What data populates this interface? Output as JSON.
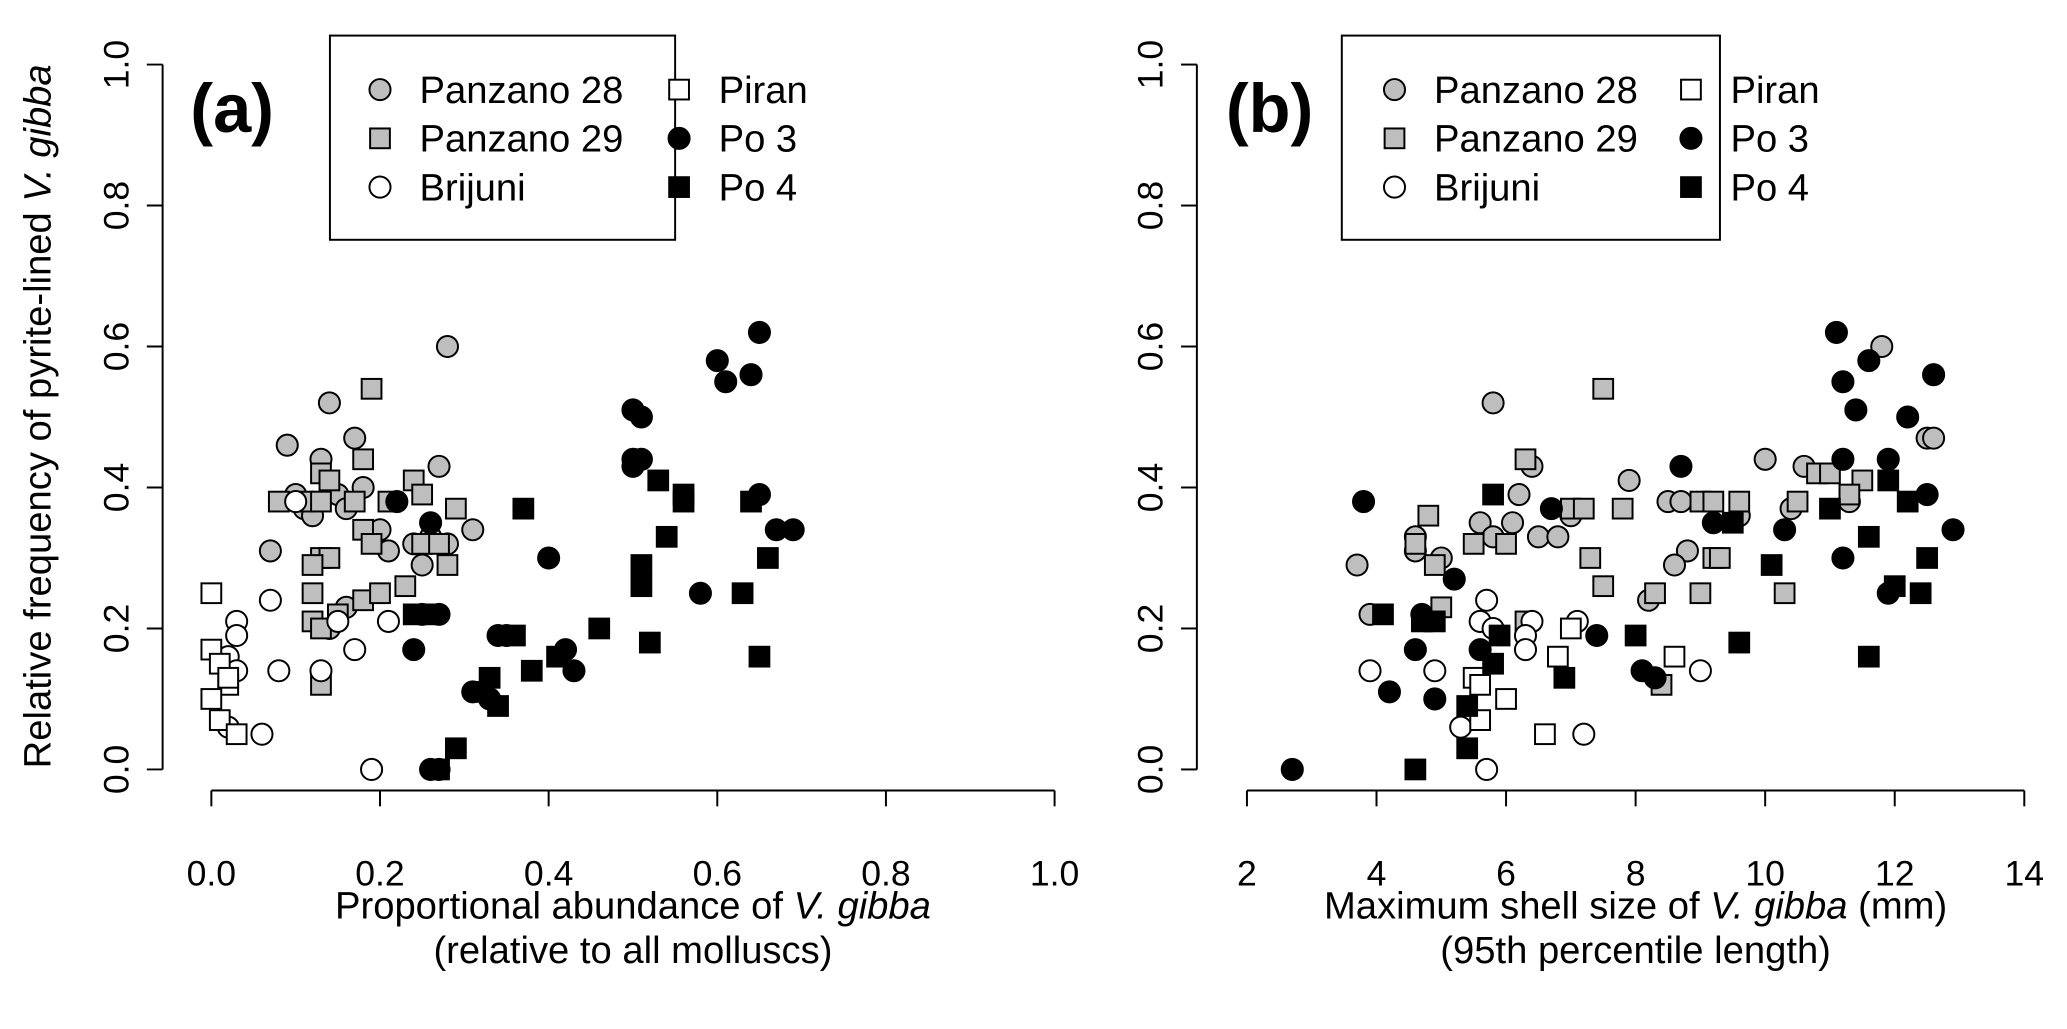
{
  "chart_data": [
    {
      "type": "scatter",
      "panel_label": "(a)",
      "xlabel": [
        "Proportional abundance of ",
        "V. gibba",
        "(relative to all molluscs)"
      ],
      "ylabel": [
        "Relative frequency of pyrite-lined ",
        "V. gibba"
      ],
      "xlim": [
        0,
        1
      ],
      "ylim": [
        0,
        1
      ],
      "xticks": [
        {
          "value": 0,
          "label": "0.0"
        },
        {
          "value": 0.2,
          "label": "0.2"
        },
        {
          "value": 0.4,
          "label": "0.4"
        },
        {
          "value": 0.6,
          "label": "0.6"
        },
        {
          "value": 0.8,
          "label": "0.8"
        },
        {
          "value": 1,
          "label": "1.0"
        }
      ],
      "yticks": [
        {
          "value": 0,
          "label": "0.0"
        },
        {
          "value": 0.2,
          "label": "0.2"
        },
        {
          "value": 0.4,
          "label": "0.4"
        },
        {
          "value": 0.6,
          "label": "0.6"
        },
        {
          "value": 0.8,
          "label": "0.8"
        },
        {
          "value": 1,
          "label": "1.0"
        }
      ],
      "legend": "top",
      "series": [
        {
          "name": "Panzano 28",
          "marker": "circle",
          "color": "#bebebe",
          "x": [
            0.09,
            0.14,
            0.28,
            0.17,
            0.13,
            0.1,
            0.11,
            0.15,
            0.16,
            0.18,
            0.27,
            0.07,
            0.12,
            0.2,
            0.24,
            0.26,
            0.31,
            0.21,
            0.25,
            0.16,
            0.14,
            0.28
          ],
          "y": [
            0.46,
            0.52,
            0.6,
            0.47,
            0.44,
            0.39,
            0.37,
            0.39,
            0.37,
            0.4,
            0.43,
            0.31,
            0.36,
            0.34,
            0.32,
            0.33,
            0.34,
            0.31,
            0.29,
            0.23,
            0.2,
            0.32
          ]
        },
        {
          "name": "Panzano 29",
          "marker": "square",
          "color": "#bebebe",
          "x": [
            0.19,
            0.18,
            0.13,
            0.14,
            0.08,
            0.11,
            0.13,
            0.17,
            0.21,
            0.24,
            0.25,
            0.29,
            0.18,
            0.19,
            0.25,
            0.27,
            0.28,
            0.13,
            0.14,
            0.12,
            0.15,
            0.18,
            0.12,
            0.13,
            0.2,
            0.23,
            0.13,
            0.12
          ],
          "y": [
            0.54,
            0.44,
            0.42,
            0.41,
            0.38,
            0.38,
            0.38,
            0.38,
            0.38,
            0.41,
            0.39,
            0.37,
            0.34,
            0.32,
            0.32,
            0.32,
            0.29,
            0.3,
            0.3,
            0.25,
            0.22,
            0.24,
            0.21,
            0.2,
            0.25,
            0.26,
            0.12,
            0.29
          ]
        },
        {
          "name": "Brijuni",
          "marker": "circle",
          "color": "#ffffff",
          "x": [
            0.03,
            0.03,
            0.02,
            0.03,
            0.07,
            0.08,
            0.13,
            0.15,
            0.17,
            0.21,
            0.02,
            0.06,
            0.19,
            0.1,
            0.25
          ],
          "y": [
            0.21,
            0.19,
            0.16,
            0.14,
            0.24,
            0.14,
            0.14,
            0.21,
            0.17,
            0.21,
            0.06,
            0.05,
            0.0,
            0.38,
            0.22
          ]
        },
        {
          "name": "Piran",
          "marker": "square",
          "color": "#ffffff",
          "x": [
            0.0,
            0.0,
            0.01,
            0.02,
            0.0,
            0.01,
            0.03,
            0.02
          ],
          "y": [
            0.25,
            0.17,
            0.15,
            0.12,
            0.1,
            0.07,
            0.05,
            0.13
          ]
        },
        {
          "name": "Po 3",
          "marker": "circle",
          "color": "#000000",
          "x": [
            0.65,
            0.6,
            0.61,
            0.64,
            0.5,
            0.51,
            0.5,
            0.51,
            0.5,
            0.65,
            0.67,
            0.69,
            0.4,
            0.58,
            0.22,
            0.26,
            0.27,
            0.24,
            0.34,
            0.35,
            0.42,
            0.43,
            0.31,
            0.33,
            0.26,
            0.27
          ],
          "y": [
            0.62,
            0.58,
            0.55,
            0.56,
            0.51,
            0.5,
            0.44,
            0.44,
            0.43,
            0.39,
            0.34,
            0.34,
            0.3,
            0.25,
            0.38,
            0.35,
            0.22,
            0.17,
            0.19,
            0.19,
            0.17,
            0.14,
            0.11,
            0.1,
            0.0,
            0.0
          ]
        },
        {
          "name": "Po 4",
          "marker": "square",
          "color": "#000000",
          "x": [
            0.53,
            0.56,
            0.56,
            0.64,
            0.37,
            0.54,
            0.66,
            0.51,
            0.51,
            0.63,
            0.46,
            0.36,
            0.41,
            0.52,
            0.65,
            0.38,
            0.33,
            0.32,
            0.34,
            0.29,
            0.27,
            0.24,
            0.26
          ],
          "y": [
            0.41,
            0.39,
            0.38,
            0.38,
            0.37,
            0.33,
            0.3,
            0.29,
            0.26,
            0.25,
            0.2,
            0.19,
            0.16,
            0.18,
            0.16,
            0.14,
            0.13,
            0.11,
            0.09,
            0.03,
            0.0,
            0.22,
            0.22
          ]
        }
      ]
    },
    {
      "type": "scatter",
      "panel_label": "(b)",
      "xlabel": [
        "Maximum shell size of ",
        "V. gibba",
        " (mm)",
        "(95th percentile length)"
      ],
      "xlim": [
        2,
        14
      ],
      "ylim": [
        0,
        1
      ],
      "xticks": [
        2,
        4,
        6,
        8,
        10,
        12,
        14
      ],
      "yticks": [
        {
          "value": 0,
          "label": "0.0"
        },
        {
          "value": 0.2,
          "label": "0.2"
        },
        {
          "value": 0.4,
          "label": "0.4"
        },
        {
          "value": 0.6,
          "label": "0.6"
        },
        {
          "value": 0.8,
          "label": "0.8"
        },
        {
          "value": 1,
          "label": "1.0"
        }
      ],
      "legend": "top",
      "series": [
        {
          "name": "Panzano 28",
          "marker": "circle",
          "color": "#bebebe",
          "x": [
            5.8,
            11.8,
            12.5,
            12.6,
            10.0,
            6.4,
            6.2,
            7.9,
            8.5,
            8.7,
            10.6,
            10.4,
            11.3,
            3.7,
            3.9,
            4.6,
            4.6,
            5.6,
            5.8,
            6.1,
            6.5,
            7.0,
            6.8,
            8.8,
            8.6,
            9.6,
            8.2,
            5.0
          ],
          "y": [
            0.52,
            0.6,
            0.47,
            0.47,
            0.44,
            0.43,
            0.39,
            0.41,
            0.38,
            0.38,
            0.43,
            0.37,
            0.38,
            0.29,
            0.22,
            0.33,
            0.31,
            0.35,
            0.33,
            0.35,
            0.33,
            0.36,
            0.33,
            0.31,
            0.29,
            0.36,
            0.24,
            0.3
          ]
        },
        {
          "name": "Panzano 29",
          "marker": "square",
          "color": "#bebebe",
          "x": [
            7.5,
            6.3,
            6.0,
            5.5,
            4.9,
            4.8,
            4.6,
            7.0,
            7.2,
            7.8,
            9.0,
            9.2,
            9.6,
            10.5,
            10.8,
            11.0,
            11.5,
            11.3,
            9.2,
            9.3,
            7.3,
            7.5,
            9.0,
            10.3,
            8.3,
            6.3,
            5.0,
            8.4
          ],
          "y": [
            0.54,
            0.44,
            0.32,
            0.32,
            0.29,
            0.36,
            0.32,
            0.37,
            0.37,
            0.37,
            0.38,
            0.38,
            0.38,
            0.38,
            0.42,
            0.42,
            0.41,
            0.39,
            0.3,
            0.3,
            0.3,
            0.26,
            0.25,
            0.25,
            0.25,
            0.21,
            0.23,
            0.12
          ]
        },
        {
          "name": "Brijuni",
          "marker": "circle",
          "color": "#ffffff",
          "x": [
            5.7,
            5.6,
            6.4,
            6.3,
            6.3,
            7.1,
            3.9,
            4.9,
            9.0,
            5.3,
            5.7,
            7.2,
            5.8
          ],
          "y": [
            0.24,
            0.21,
            0.21,
            0.19,
            0.17,
            0.21,
            0.14,
            0.14,
            0.14,
            0.06,
            0.0,
            0.05,
            0.2
          ]
        },
        {
          "name": "Piran",
          "marker": "square",
          "color": "#ffffff",
          "x": [
            5.5,
            5.6,
            5.6,
            6.0,
            6.6,
            6.8,
            7.0,
            8.6
          ],
          "y": [
            0.13,
            0.12,
            0.07,
            0.1,
            0.05,
            0.16,
            0.2,
            0.16
          ]
        },
        {
          "name": "Po 3",
          "marker": "circle",
          "color": "#000000",
          "x": [
            11.1,
            11.6,
            12.6,
            11.2,
            11.4,
            12.2,
            11.2,
            11.9,
            8.7,
            12.5,
            12.9,
            10.3,
            9.2,
            11.2,
            11.9,
            3.8,
            6.7,
            4.7,
            4.6,
            4.9,
            5.6,
            7.4,
            4.2,
            8.1,
            2.7,
            5.2,
            8.3
          ],
          "y": [
            0.62,
            0.58,
            0.56,
            0.55,
            0.51,
            0.5,
            0.44,
            0.44,
            0.43,
            0.39,
            0.34,
            0.34,
            0.35,
            0.3,
            0.25,
            0.38,
            0.37,
            0.22,
            0.17,
            0.1,
            0.17,
            0.19,
            0.11,
            0.14,
            0.0,
            0.27,
            0.13
          ]
        },
        {
          "name": "Po 4",
          "marker": "square",
          "color": "#000000",
          "x": [
            11.9,
            12.2,
            11.0,
            5.8,
            9.5,
            11.6,
            12.5,
            10.1,
            12.0,
            12.4,
            4.1,
            4.7,
            4.9,
            8.0,
            9.6,
            11.6,
            5.9,
            5.8,
            6.9,
            5.4,
            5.4,
            4.6
          ],
          "y": [
            0.41,
            0.38,
            0.37,
            0.39,
            0.35,
            0.33,
            0.3,
            0.29,
            0.26,
            0.25,
            0.22,
            0.21,
            0.21,
            0.19,
            0.18,
            0.16,
            0.19,
            0.15,
            0.13,
            0.09,
            0.03,
            0.0
          ]
        }
      ]
    }
  ]
}
